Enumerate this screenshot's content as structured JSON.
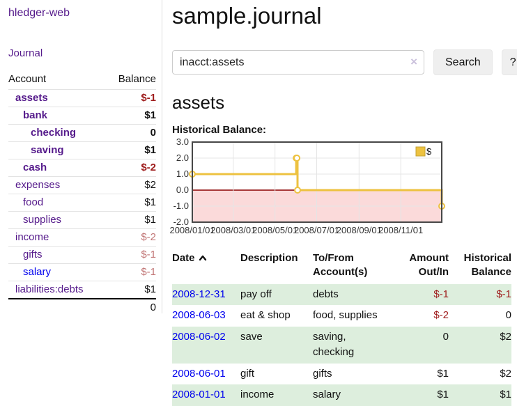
{
  "sidebar": {
    "brand": "hledger-web",
    "journal_link": "Journal",
    "accounts": {
      "header_account": "Account",
      "header_balance": "Balance",
      "rows": [
        {
          "name": "assets",
          "balance": "$-1"
        },
        {
          "name": "bank",
          "balance": "$1"
        },
        {
          "name": "checking",
          "balance": "0"
        },
        {
          "name": "saving",
          "balance": "$1"
        },
        {
          "name": "cash",
          "balance": "$-2"
        },
        {
          "name": "expenses",
          "balance": "$2"
        },
        {
          "name": "food",
          "balance": "$1"
        },
        {
          "name": "supplies",
          "balance": "$1"
        },
        {
          "name": "income",
          "balance": "$-2"
        },
        {
          "name": "gifts",
          "balance": "$-1"
        },
        {
          "name": "salary",
          "balance": "$-1"
        },
        {
          "name": "liabilities:debts",
          "balance": "$1"
        }
      ],
      "total": "0"
    }
  },
  "main": {
    "title": "sample.journal",
    "search": {
      "value": "inacct:assets",
      "clear_icon": "×",
      "search_button": "Search",
      "help_button": "?"
    },
    "account_heading": "assets",
    "chart_title": "Historical Balance:"
  },
  "chart_data": {
    "type": "line",
    "step": "after",
    "title": "Historical Balance",
    "x_range": [
      "2008-01-01",
      "2008-12-31"
    ],
    "ylim": [
      -2,
      3
    ],
    "yticks": [
      3,
      2,
      1,
      0,
      -1,
      -2
    ],
    "xticks": [
      {
        "date": "2008-01-01",
        "label": "2008/01/01"
      },
      {
        "date": "2008-03-01",
        "label": "2008/03/01"
      },
      {
        "date": "2008-05-01",
        "label": "2008/05/01"
      },
      {
        "date": "2008-07-01",
        "label": "2008/07/01"
      },
      {
        "date": "2008-09-01",
        "label": "2008/09/01"
      },
      {
        "date": "2008-11-01",
        "label": "2008/11/01"
      }
    ],
    "series": [
      {
        "name": "$",
        "color": "#edc240",
        "points": [
          [
            "2008-01-01",
            1
          ],
          [
            "2008-06-01",
            2
          ],
          [
            "2008-06-02",
            2
          ],
          [
            "2008-06-03",
            0
          ],
          [
            "2008-12-31",
            -1
          ]
        ]
      }
    ],
    "legend_position": "top-right",
    "grid": true,
    "grid_color": "#e5e5e5",
    "border_color": "#474747",
    "negative_fill": "#fbdada",
    "zero_line_color": "#8b0000"
  },
  "register": {
    "headers": {
      "date": "Date",
      "description": "Description",
      "account": "To/From Account(s)",
      "amount": "Amount Out/In",
      "balance": "Historical Balance"
    },
    "rows": [
      {
        "date": "2008-12-31",
        "description": "pay off",
        "account": "debts",
        "amount": "$-1",
        "balance": "$-1"
      },
      {
        "date": "2008-06-03",
        "description": "eat & shop",
        "account": "food, supplies",
        "amount": "$-2",
        "balance": "0"
      },
      {
        "date": "2008-06-02",
        "description": "save",
        "account": "saving, checking",
        "amount": "0",
        "balance": "$2"
      },
      {
        "date": "2008-06-01",
        "description": "gift",
        "account": "gifts",
        "amount": "$1",
        "balance": "$2"
      },
      {
        "date": "2008-01-01",
        "description": "income",
        "account": "salary",
        "amount": "$1",
        "balance": "$1"
      }
    ]
  }
}
